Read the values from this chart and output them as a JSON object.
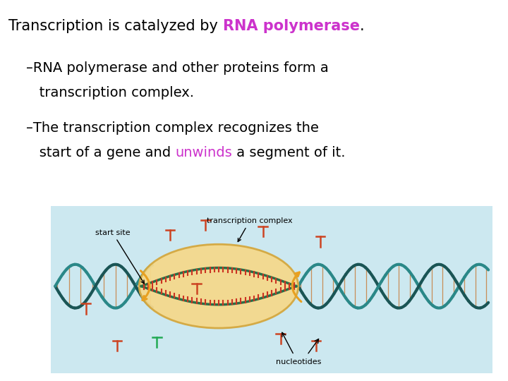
{
  "background_color": "#ffffff",
  "title_parts": [
    {
      "text": "Transcription is catalyzed by ",
      "color": "#000000",
      "bold": false
    },
    {
      "text": "RNA polymerase",
      "color": "#cc33cc",
      "bold": true
    },
    {
      "text": ".",
      "color": "#000000",
      "bold": false
    }
  ],
  "bullet1_line1": "–RNA polymerase and other proteins form a",
  "bullet1_line2": "   transcription complex.",
  "bullet2_line1": "–The transcription complex recognizes the",
  "bullet2_line2_parts": [
    {
      "text": "   start of a gene and ",
      "color": "#000000"
    },
    {
      "text": "unwinds",
      "color": "#cc33cc"
    },
    {
      "text": " a segment of it.",
      "color": "#000000"
    }
  ],
  "diagram_bg": "#cce8f0",
  "ellipse_color": "#f5d98c",
  "ellipse_edge": "#d4a840",
  "dna_c1": "#2a8888",
  "dna_c2": "#1a5555",
  "rung_color": "#c87832",
  "inner_strand_color": "#2a7048",
  "inner_rung_color": "#cc3322",
  "arrow_color": "#e8a020",
  "label_start_site": "start site",
  "label_tc": "transcription complex",
  "label_nucleotides": "nucleotides",
  "font_size_title": 15,
  "font_size_bullets": 14,
  "font_size_diagram": 8
}
